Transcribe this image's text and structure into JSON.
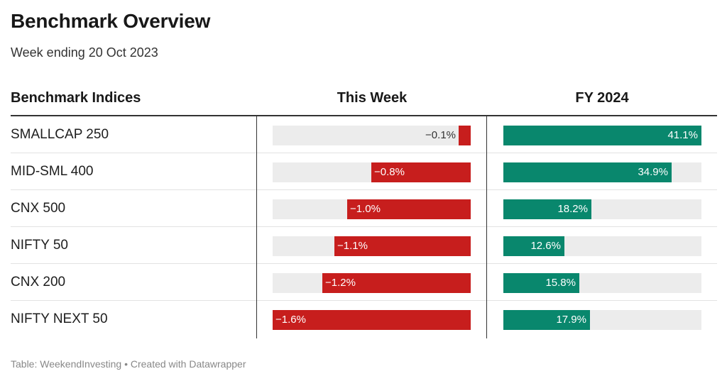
{
  "title": "Benchmark Overview",
  "subtitle": "Week ending 20 Oct 2023",
  "columns": {
    "name": "Benchmark Indices",
    "week": "This Week",
    "fy": "FY 2024"
  },
  "colors": {
    "negative": "#c71e1d",
    "positive": "#09876d",
    "track": "#ececec"
  },
  "chart_data": {
    "type": "table",
    "week_scale_max_abs": 1.6,
    "fy_scale_max": 41.1,
    "rows": [
      {
        "name": "SMALLCAP 250",
        "week": -0.1,
        "week_label": "−0.1%",
        "fy": 41.1,
        "fy_label": "41.1%"
      },
      {
        "name": "MID-SML 400",
        "week": -0.8,
        "week_label": "−0.8%",
        "fy": 34.9,
        "fy_label": "34.9%"
      },
      {
        "name": "CNX 500",
        "week": -1.0,
        "week_label": "−1.0%",
        "fy": 18.2,
        "fy_label": "18.2%"
      },
      {
        "name": "NIFTY 50",
        "week": -1.1,
        "week_label": "−1.1%",
        "fy": 12.6,
        "fy_label": "12.6%"
      },
      {
        "name": "CNX 200",
        "week": -1.2,
        "week_label": "−1.2%",
        "fy": 15.8,
        "fy_label": "15.8%"
      },
      {
        "name": "NIFTY NEXT 50",
        "week": -1.6,
        "week_label": "−1.6%",
        "fy": 17.9,
        "fy_label": "17.9%"
      }
    ]
  },
  "footer": "Table: WeekendInvesting • Created with Datawrapper"
}
